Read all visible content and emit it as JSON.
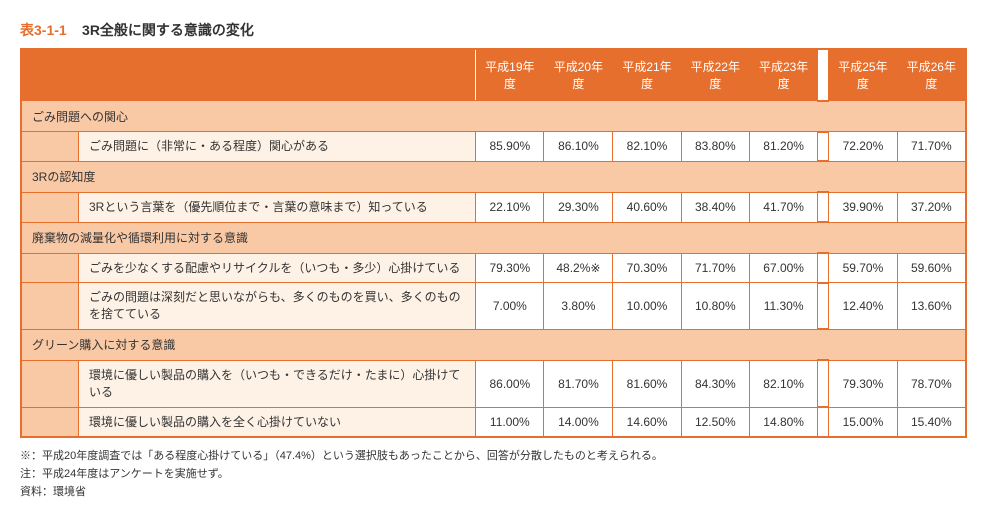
{
  "table_number": "表3-1-1",
  "table_title": "3R全般に関する意識の変化",
  "columns_left": [
    "平成19年度",
    "平成20年度",
    "平成21年度",
    "平成22年度",
    "平成23年度"
  ],
  "columns_right": [
    "平成25年度",
    "平成26年度"
  ],
  "sections": [
    {
      "label": "ごみ問題への関心",
      "rows": [
        {
          "label": "ごみ問題に（非常に・ある程度）関心がある",
          "left": [
            "85.90%",
            "86.10%",
            "82.10%",
            "83.80%",
            "81.20%"
          ],
          "right": [
            "72.20%",
            "71.70%"
          ]
        }
      ]
    },
    {
      "label": "3Rの認知度",
      "rows": [
        {
          "label": "3Rという言葉を（優先順位まで・言葉の意味まで）知っている",
          "left": [
            "22.10%",
            "29.30%",
            "40.60%",
            "38.40%",
            "41.70%"
          ],
          "right": [
            "39.90%",
            "37.20%"
          ]
        }
      ]
    },
    {
      "label": "廃棄物の減量化や循環利用に対する意識",
      "rows": [
        {
          "label": "ごみを少なくする配慮やリサイクルを（いつも・多少）心掛けている",
          "left": [
            "79.30%",
            "48.2%※",
            "70.30%",
            "71.70%",
            "67.00%"
          ],
          "right": [
            "59.70%",
            "59.60%"
          ]
        },
        {
          "label": "ごみの問題は深刻だと思いながらも、多くのものを買い、多くのものを捨てている",
          "left": [
            "7.00%",
            "3.80%",
            "10.00%",
            "10.80%",
            "11.30%"
          ],
          "right": [
            "12.40%",
            "13.60%"
          ]
        }
      ]
    },
    {
      "label": "グリーン購入に対する意識",
      "rows": [
        {
          "label": "環境に優しい製品の購入を（いつも・できるだけ・たまに）心掛けている",
          "left": [
            "86.00%",
            "81.70%",
            "81.60%",
            "84.30%",
            "82.10%"
          ],
          "right": [
            "79.30%",
            "78.70%"
          ]
        },
        {
          "label": "環境に優しい製品の購入を全く心掛けていない",
          "left": [
            "11.00%",
            "14.00%",
            "14.60%",
            "12.50%",
            "14.80%"
          ],
          "right": [
            "15.00%",
            "15.40%"
          ]
        }
      ]
    }
  ],
  "notes": [
    "※：平成20年度調査では「ある程度心掛けている」（47.4%）という選択肢もあったことから、回答が分散したものと考えられる。",
    "注：平成24年度はアンケートを実施せず。",
    "資料：環境省"
  ],
  "colors": {
    "accent": "#e76f2e",
    "section_bg": "#f9c8a5",
    "indent_bg": "#fef2e6"
  }
}
